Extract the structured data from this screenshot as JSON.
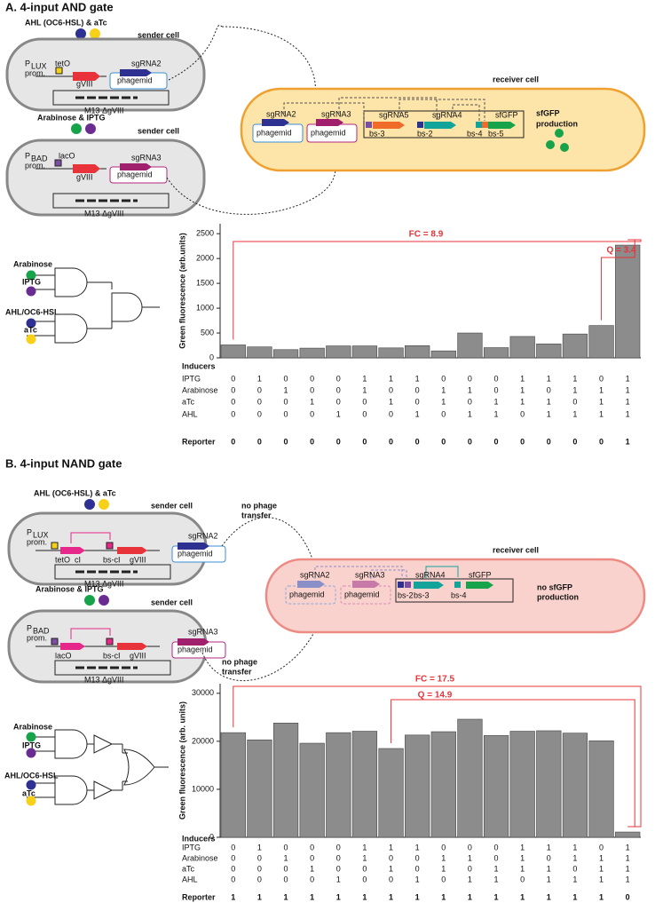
{
  "diagram_a": {
    "title": "A. 4-input AND gate",
    "inducers_1": "AHL (OC6-HSL) & aTc",
    "inducers_2": "Arabinose & IPTG",
    "sender": "sender cell",
    "receiver": "receiver cell",
    "p_lux": "P",
    "lux": "LUX",
    "p_bad": "P",
    "bad": "BAD",
    "prom": "prom.",
    "teto": "tetO",
    "laco": "lacO",
    "gviii": "gVIII",
    "m13": "M13 ΔgVIII",
    "sgrna2": "sgRNA2",
    "sgrna3": "sgRNA3",
    "sgrna4": "sgRNA4",
    "sgrna5": "sgRNA5",
    "phagemid": "phagemid",
    "sfgfp": "sfGFP",
    "production": "production",
    "bs3": "bs-3",
    "bs2": "bs-2",
    "bs4": "bs-4",
    "bs5": "bs-5",
    "gate_arabinose": "Arabinose",
    "gate_iptg": "IPTG",
    "gate_ahl": "AHL/OC6-HSL",
    "gate_atc": "aTc"
  },
  "diagram_b": {
    "title": "B. 4-input NAND gate",
    "inducers_1": "AHL (OC6-HSL) & aTc",
    "inducers_2": "Arabinose & IPTG",
    "sender": "sender cell",
    "receiver": "receiver cell",
    "p_lux": "P",
    "lux": "LUX",
    "p_bad": "P",
    "bad": "BAD",
    "prom": "prom.",
    "teto": "tetO",
    "laco": "lacO",
    "ci": "cI",
    "bsci": "bs-cI",
    "gviii": "gVIII",
    "m13": "M13 ΔgVIII",
    "sgrna2": "sgRNA2",
    "sgrna3": "sgRNA3",
    "sgrna4": "sgRNA4",
    "phagemid": "phagemid",
    "sfgfp": "sfGFP",
    "bs2": "bs-2",
    "bs3": "bs-3",
    "bs4": "bs-4",
    "no": "no phage",
    "transfer": "transfer",
    "no_sfgfp": "no sfGFP",
    "production": "production",
    "gate_arabinose": "Arabinose",
    "gate_iptg": "IPTG",
    "gate_ahl": "AHL/OC6-HSL",
    "gate_atc": "aTc"
  },
  "chart_data": [
    {
      "type": "bar",
      "y_label": "Green fluorescence (arb.units)",
      "values": [
        260,
        220,
        165,
        195,
        240,
        240,
        200,
        245,
        140,
        500,
        205,
        430,
        280,
        480,
        650,
        2270
      ],
      "color": "#8c8c8c",
      "ylim": [
        0,
        2700
      ],
      "yticks": [
        0,
        500,
        1000,
        1500,
        2000,
        2500
      ],
      "annotations": [
        "FC = 8.9",
        "Q = 3.4"
      ],
      "inducers": {
        "label": "Inducers",
        "rows": [
          {
            "name": "IPTG",
            "values": [
              0,
              1,
              0,
              0,
              0,
              1,
              1,
              1,
              0,
              0,
              0,
              1,
              1,
              1,
              0,
              1
            ]
          },
          {
            "name": "Arabinose",
            "values": [
              0,
              0,
              1,
              0,
              0,
              1,
              0,
              0,
              1,
              1,
              0,
              1,
              0,
              1,
              1,
              1
            ]
          },
          {
            "name": "aTc",
            "values": [
              0,
              0,
              0,
              1,
              0,
              0,
              1,
              0,
              1,
              0,
              1,
              1,
              1,
              0,
              1,
              1
            ]
          },
          {
            "name": "AHL",
            "values": [
              0,
              0,
              0,
              0,
              1,
              0,
              0,
              1,
              0,
              1,
              1,
              0,
              1,
              1,
              1,
              1
            ]
          }
        ]
      },
      "reporter": {
        "name": "Reporter",
        "values": [
          0,
          0,
          0,
          0,
          0,
          0,
          0,
          0,
          0,
          0,
          0,
          0,
          0,
          0,
          0,
          1
        ]
      }
    },
    {
      "type": "bar",
      "y_label": "Green fluorescence (arb. units)",
      "values": [
        21800,
        20300,
        23800,
        19600,
        21800,
        22100,
        18500,
        21300,
        22000,
        24600,
        21200,
        22100,
        22200,
        21700,
        20100,
        1100
      ],
      "color": "#8c8c8c",
      "ylim": [
        0,
        32000
      ],
      "yticks": [
        0,
        10000,
        20000,
        30000
      ],
      "annotations": [
        "FC = 17.5",
        "Q = 14.9"
      ],
      "inducers": {
        "label": "Inducers",
        "rows": [
          {
            "name": "IPTG",
            "values": [
              0,
              1,
              0,
              0,
              0,
              1,
              1,
              1,
              0,
              0,
              0,
              1,
              1,
              1,
              0,
              1
            ]
          },
          {
            "name": "Arabinose",
            "values": [
              0,
              0,
              1,
              0,
              0,
              1,
              0,
              0,
              1,
              1,
              0,
              1,
              0,
              1,
              1,
              1
            ]
          },
          {
            "name": "aTc",
            "values": [
              0,
              0,
              0,
              1,
              0,
              0,
              1,
              0,
              1,
              0,
              1,
              1,
              1,
              0,
              1,
              1
            ]
          },
          {
            "name": "AHL",
            "values": [
              0,
              0,
              0,
              0,
              1,
              0,
              0,
              1,
              0,
              1,
              1,
              0,
              1,
              1,
              1,
              1
            ]
          }
        ]
      },
      "reporter": {
        "name": "Reporter",
        "values": [
          1,
          1,
          1,
          1,
          1,
          1,
          1,
          1,
          1,
          1,
          1,
          1,
          1,
          1,
          1,
          0
        ]
      }
    }
  ]
}
